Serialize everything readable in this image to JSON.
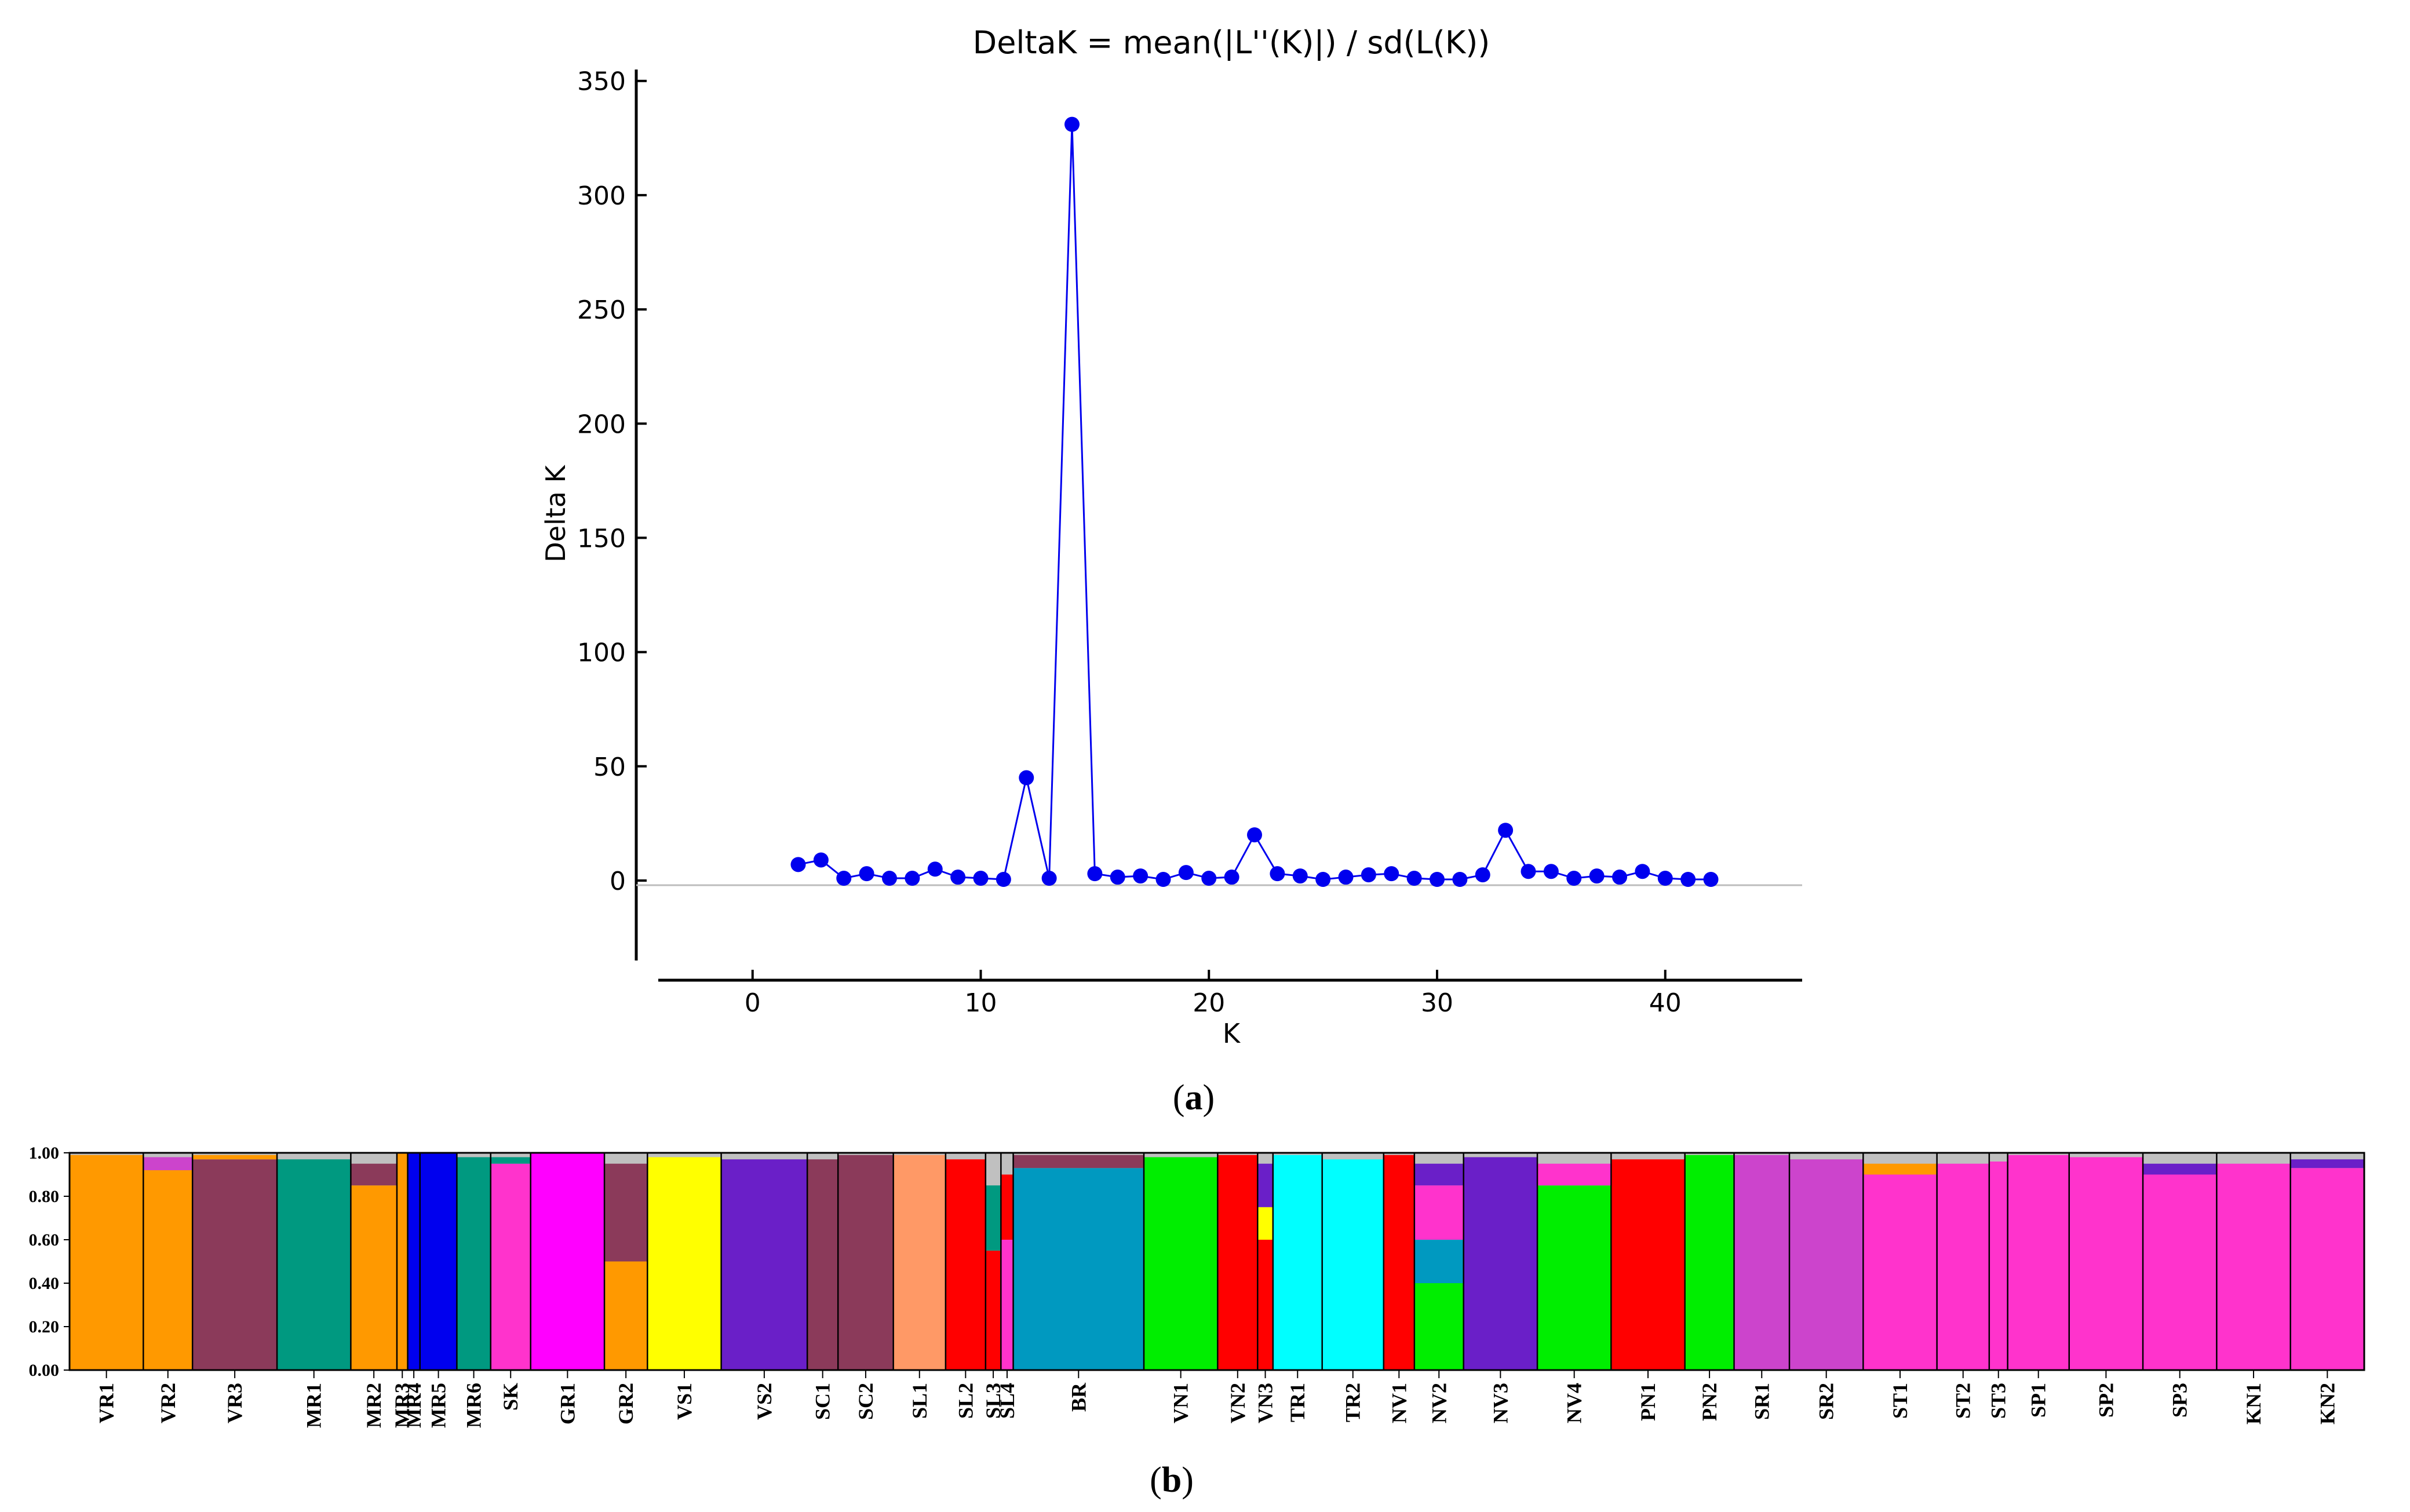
{
  "panel_a": {
    "caption": "(a)",
    "caption_letter": "a",
    "chart_data": {
      "type": "line",
      "title": "DeltaK = mean(|L''(K)|) / sd(L(K))",
      "xlabel": "K",
      "ylabel": "Delta K",
      "xlim": [
        -2,
        46
      ],
      "ylim": [
        -35,
        355
      ],
      "xticks": [
        "0",
        "10",
        "20",
        "30",
        "40"
      ],
      "yticks": [
        "0",
        "50",
        "100",
        "150",
        "200",
        "250",
        "300",
        "350"
      ],
      "grid": false,
      "series": [
        {
          "color": "#0000ee",
          "x": [
            2,
            3,
            4,
            5,
            6,
            7,
            8,
            9,
            10,
            11,
            12,
            13,
            14,
            15,
            16,
            17,
            18,
            19,
            20,
            21,
            22,
            23,
            24,
            25,
            26,
            27,
            28,
            29,
            30,
            31,
            32,
            33,
            34,
            35,
            36,
            37,
            38,
            39,
            40,
            41,
            42
          ],
          "y": [
            7,
            9,
            1,
            3,
            1,
            1,
            5,
            1.5,
            1,
            0.5,
            45,
            1,
            331,
            3,
            1.5,
            2,
            0.5,
            3.5,
            1,
            1.5,
            20,
            3,
            2,
            0.5,
            1.5,
            2.5,
            3,
            1,
            0.5,
            0.5,
            2.5,
            22,
            4,
            4,
            1,
            2,
            1.5,
            4,
            1,
            0.5,
            0.5
          ]
        }
      ]
    }
  },
  "panel_b": {
    "caption": "(b)",
    "caption_letter": "b",
    "chart_data": {
      "type": "bar",
      "subtype": "stacked-admixture",
      "yticks": [
        "0.00",
        "0.20",
        "0.40",
        "0.60",
        "0.80",
        "1.00"
      ],
      "ylim": [
        0,
        1
      ],
      "populations": [
        {
          "label": "VR1",
          "w": 48,
          "mix": [
            [
              "#ff9900",
              0.99
            ]
          ]
        },
        {
          "label": "VR2",
          "w": 32,
          "mix": [
            [
              "#ff9900",
              0.92
            ],
            [
              "#cc44cc",
              0.06
            ]
          ]
        },
        {
          "label": "VR3",
          "w": 55,
          "mix": [
            [
              "#8b3a5a",
              0.97
            ],
            [
              "#ff9900",
              0.02
            ]
          ]
        },
        {
          "label": "MR1",
          "w": 48,
          "mix": [
            [
              "#009980",
              0.97
            ]
          ]
        },
        {
          "label": "MR2",
          "w": 30,
          "mix": [
            [
              "#ff9900",
              0.85
            ],
            [
              "#8b3a5a",
              0.1
            ]
          ]
        },
        {
          "label": "MR3",
          "w": 7,
          "mix": [
            [
              "#ff9900",
              1.0
            ]
          ]
        },
        {
          "label": "MR4",
          "w": 8,
          "mix": [
            [
              "#0000ee",
              1.0
            ]
          ]
        },
        {
          "label": "MR5",
          "w": 24,
          "mix": [
            [
              "#0000ee",
              1.0
            ]
          ]
        },
        {
          "label": "MR6",
          "w": 22,
          "mix": [
            [
              "#009980",
              0.98
            ]
          ]
        },
        {
          "label": "SK",
          "w": 26,
          "mix": [
            [
              "#ff33cc",
              0.95
            ],
            [
              "#009980",
              0.03
            ]
          ]
        },
        {
          "label": "GR1",
          "w": 48,
          "mix": [
            [
              "#ff00ff",
              1.0
            ]
          ]
        },
        {
          "label": "GR2",
          "w": 28,
          "mix": [
            [
              "#ff9900",
              0.5
            ],
            [
              "#8b3a5a",
              0.45
            ]
          ]
        },
        {
          "label": "VS1",
          "w": 48,
          "mix": [
            [
              "#ffff00",
              0.98
            ]
          ]
        },
        {
          "label": "VS2",
          "w": 56,
          "mix": [
            [
              "#6a1fc8",
              0.97
            ]
          ]
        },
        {
          "label": "SC1",
          "w": 20,
          "mix": [
            [
              "#8b3a5a",
              0.97
            ]
          ]
        },
        {
          "label": "SC2",
          "w": 36,
          "mix": [
            [
              "#8b3a5a",
              0.99
            ]
          ]
        },
        {
          "label": "SL1",
          "w": 34,
          "mix": [
            [
              "#ff9966",
              0.99
            ]
          ]
        },
        {
          "label": "SL2",
          "w": 26,
          "mix": [
            [
              "#ff0000",
              0.97
            ]
          ]
        },
        {
          "label": "SL3",
          "w": 10,
          "mix": [
            [
              "#ff0000",
              0.55
            ],
            [
              "#009980",
              0.3
            ]
          ]
        },
        {
          "label": "SL4",
          "w": 8,
          "mix": [
            [
              "#ff33cc",
              0.6
            ],
            [
              "#ff0000",
              0.3
            ]
          ]
        },
        {
          "label": "BR",
          "w": 85,
          "mix": [
            [
              "#0099c0",
              0.93
            ],
            [
              "#8b3a5a",
              0.06
            ]
          ]
        },
        {
          "label": "VN1",
          "w": 48,
          "mix": [
            [
              "#00ee00",
              0.98
            ]
          ]
        },
        {
          "label": "VN2",
          "w": 26,
          "mix": [
            [
              "#ff0000",
              0.99
            ]
          ]
        },
        {
          "label": "VN3",
          "w": 10,
          "mix": [
            [
              "#ff0000",
              0.6
            ],
            [
              "#ffff00",
              0.15
            ],
            [
              "#6a1fc8",
              0.2
            ]
          ]
        },
        {
          "label": "TR1",
          "w": 32,
          "mix": [
            [
              "#00ffff",
              0.99
            ]
          ]
        },
        {
          "label": "TR2",
          "w": 40,
          "mix": [
            [
              "#00ffff",
              0.97
            ]
          ]
        },
        {
          "label": "NV1",
          "w": 20,
          "mix": [
            [
              "#ff0000",
              0.99
            ]
          ]
        },
        {
          "label": "NV2",
          "w": 32,
          "mix": [
            [
              "#00ee00",
              0.4
            ],
            [
              "#0099c0",
              0.2
            ],
            [
              "#ff33cc",
              0.25
            ],
            [
              "#6a1fc8",
              0.1
            ]
          ]
        },
        {
          "label": "NV3",
          "w": 48,
          "mix": [
            [
              "#6a1fc8",
              0.98
            ]
          ]
        },
        {
          "label": "NV4",
          "w": 48,
          "mix": [
            [
              "#00ee00",
              0.85
            ],
            [
              "#ff33cc",
              0.1
            ]
          ]
        },
        {
          "label": "PN1",
          "w": 48,
          "mix": [
            [
              "#ff0000",
              0.97
            ]
          ]
        },
        {
          "label": "PN2",
          "w": 32,
          "mix": [
            [
              "#00ee00",
              0.99
            ]
          ]
        },
        {
          "label": "SR1",
          "w": 36,
          "mix": [
            [
              "#cc44cc",
              0.99
            ]
          ]
        },
        {
          "label": "SR2",
          "w": 48,
          "mix": [
            [
              "#cc44cc",
              0.97
            ]
          ]
        },
        {
          "label": "ST1",
          "w": 48,
          "mix": [
            [
              "#ff33cc",
              0.9
            ],
            [
              "#ff9900",
              0.05
            ]
          ]
        },
        {
          "label": "ST2",
          "w": 34,
          "mix": [
            [
              "#ff33cc",
              0.95
            ]
          ]
        },
        {
          "label": "ST3",
          "w": 12,
          "mix": [
            [
              "#ff33cc",
              0.96
            ]
          ]
        },
        {
          "label": "SP1",
          "w": 40,
          "mix": [
            [
              "#ff33cc",
              0.99
            ]
          ]
        },
        {
          "label": "SP2",
          "w": 48,
          "mix": [
            [
              "#ff33cc",
              0.98
            ]
          ]
        },
        {
          "label": "SP3",
          "w": 48,
          "mix": [
            [
              "#ff33cc",
              0.9
            ],
            [
              "#6a1fc8",
              0.05
            ]
          ]
        },
        {
          "label": "KN1",
          "w": 48,
          "mix": [
            [
              "#ff33cc",
              0.95
            ]
          ]
        },
        {
          "label": "KN2",
          "w": 48,
          "mix": [
            [
              "#ff33cc",
              0.93
            ],
            [
              "#6a1fc8",
              0.04
            ]
          ]
        }
      ]
    }
  }
}
